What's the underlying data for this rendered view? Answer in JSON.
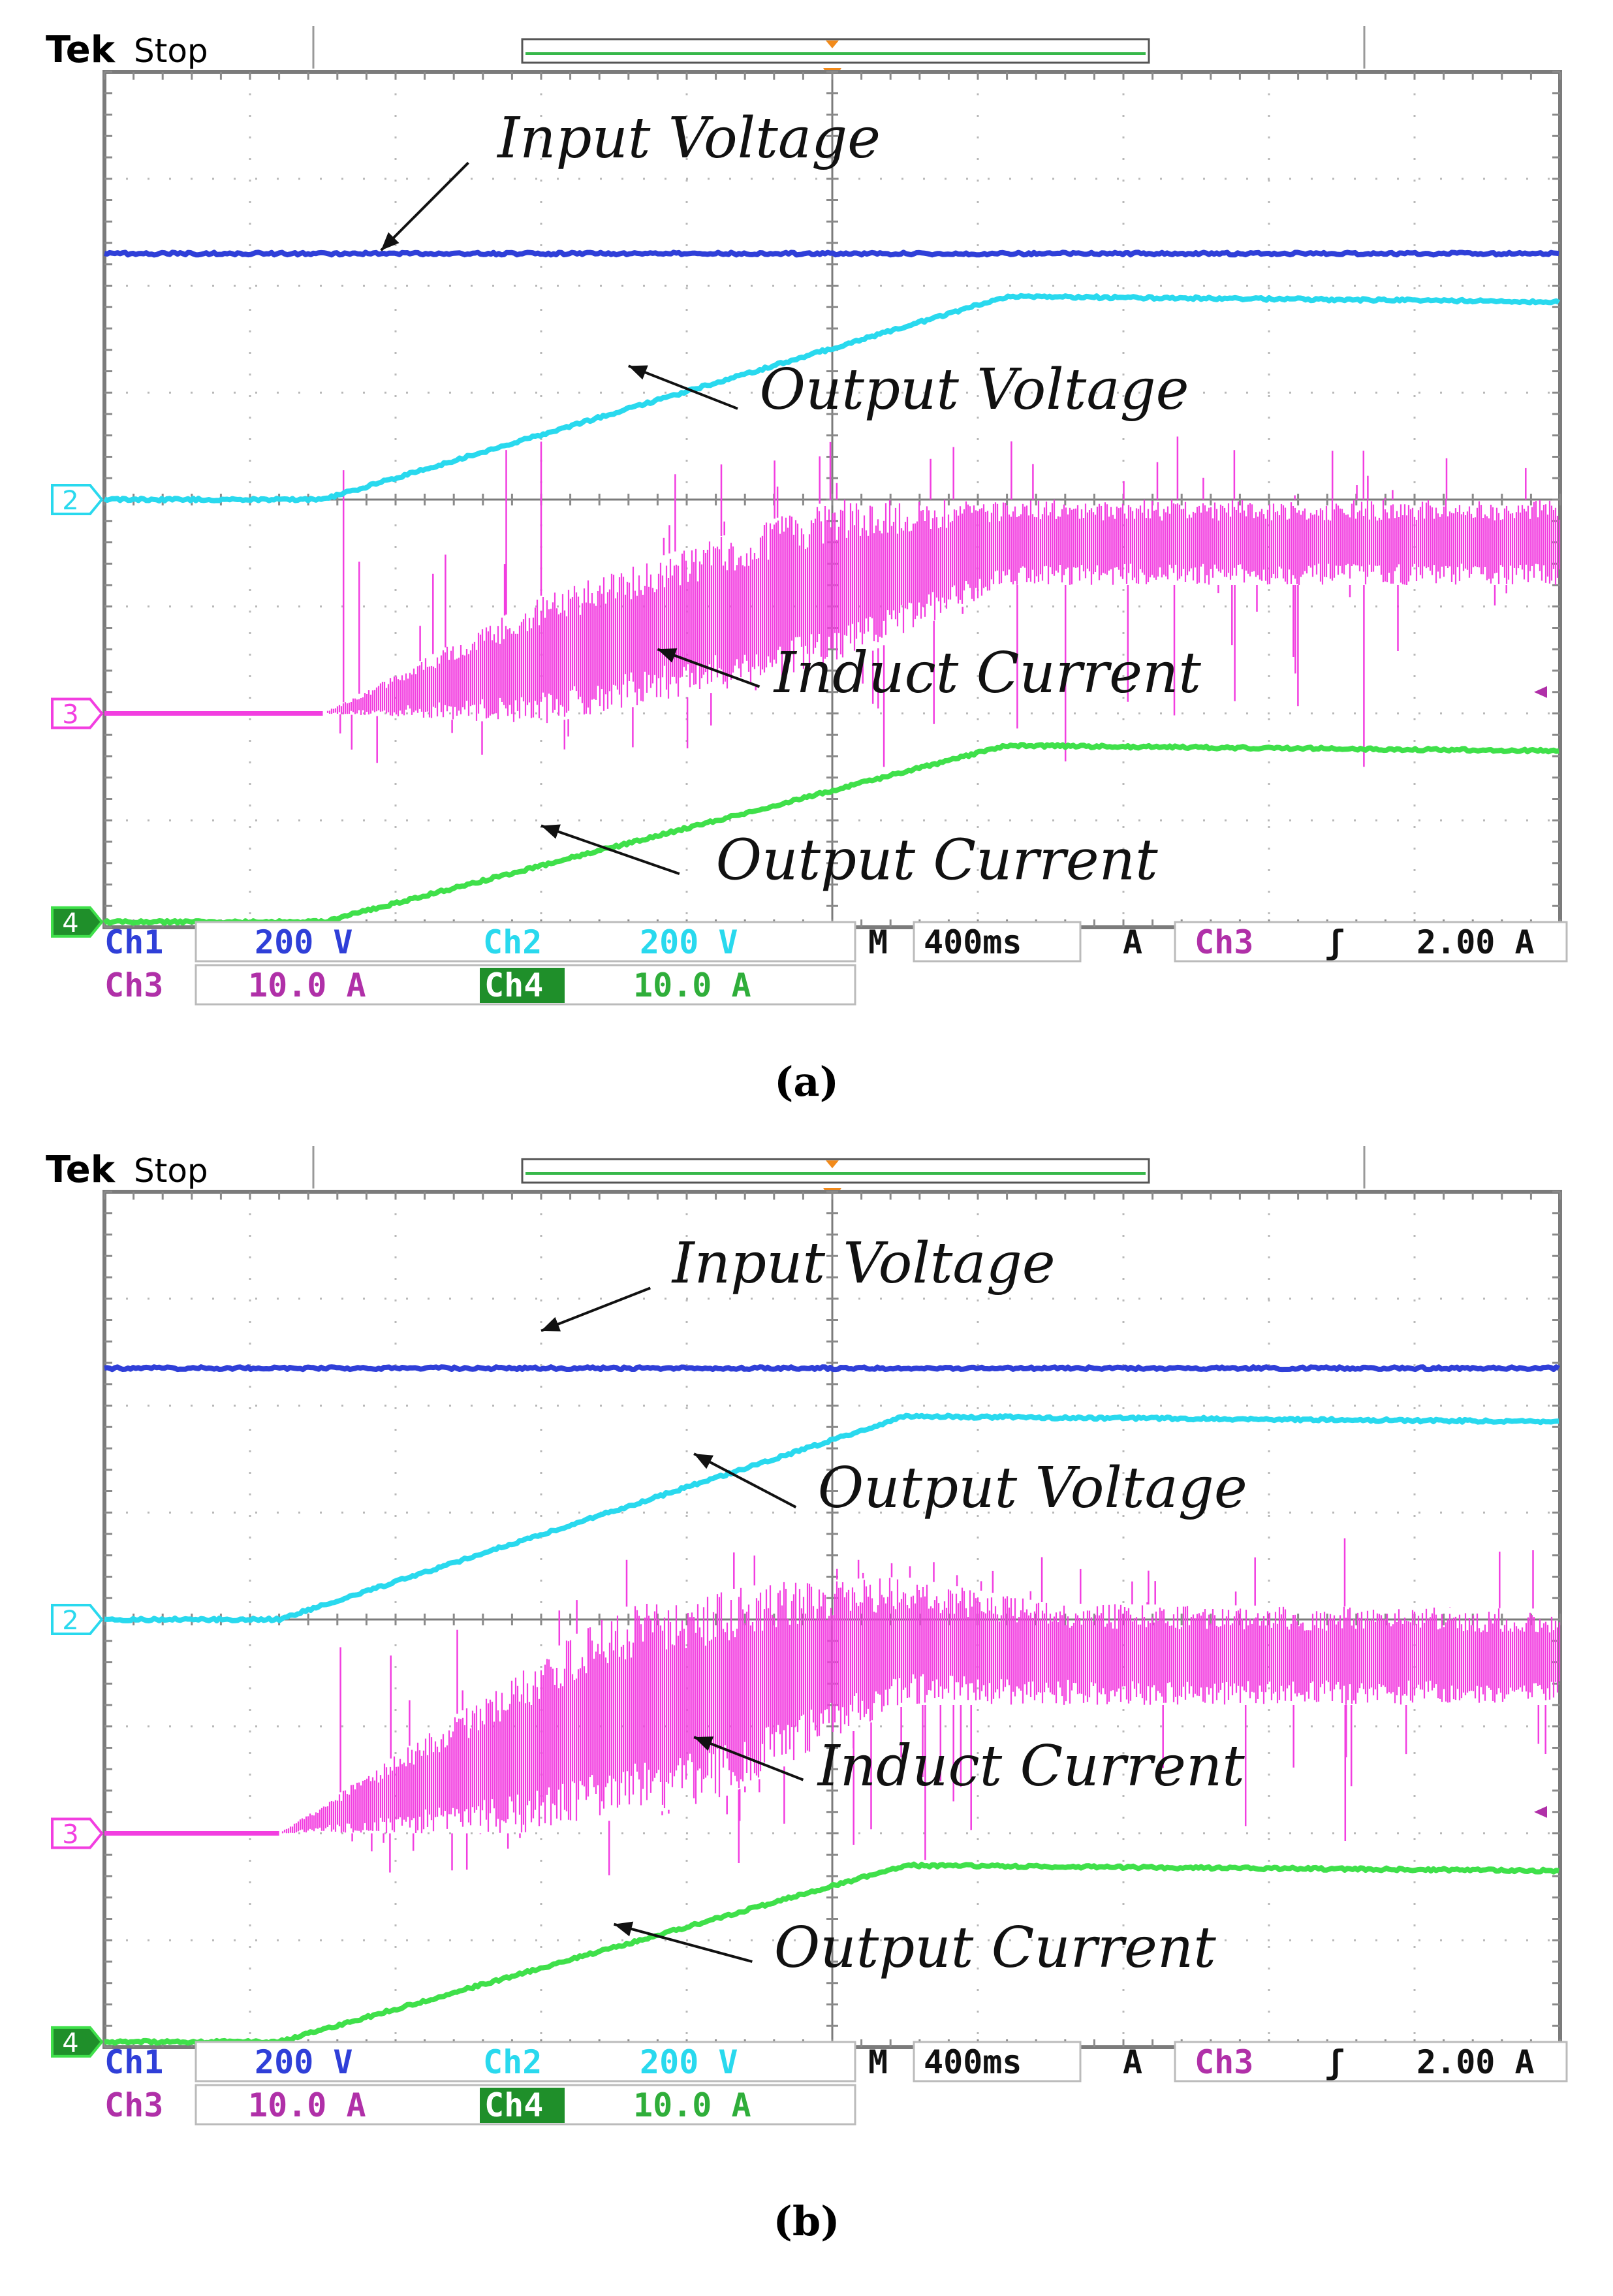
{
  "chart_data": [
    {
      "type": "line",
      "caption": "(a)",
      "header": {
        "brand": "Tek",
        "status": "Stop"
      },
      "colors": {
        "ch1": "#2f3fd8",
        "ch2": "#29d9ee",
        "ch3": "#f23ee0",
        "ch4": "#3fe04a"
      },
      "x": {
        "divisions": 10,
        "unit": "ms",
        "per_div": 400,
        "range_div": [
          0,
          10
        ]
      },
      "y": {
        "divisions": 8,
        "range_div": [
          -4,
          4
        ]
      },
      "markers": [
        {
          "id": "ch2-marker",
          "label": "2",
          "y_div": 0.0,
          "color": "#29d9ee"
        },
        {
          "id": "ch3-marker",
          "label": "3",
          "y_div": -2.0,
          "color": "#f23ee0"
        },
        {
          "id": "ch4-marker",
          "label": "4",
          "y_div": -3.95,
          "color": "#3fe04a"
        }
      ],
      "series": [
        {
          "name": "Input Voltage",
          "channel": "ch1",
          "points": [
            [
              0,
              2.3
            ],
            [
              10,
              2.3
            ]
          ]
        },
        {
          "name": "Output Voltage",
          "channel": "ch2",
          "points": [
            [
              0,
              0
            ],
            [
              1.5,
              0
            ],
            [
              6.2,
              1.9
            ],
            [
              10,
              1.85
            ]
          ]
        },
        {
          "name": "Induct Current",
          "channel": "ch3",
          "kind": "envelope",
          "upper": [
            [
              0,
              -2.0
            ],
            [
              1.5,
              -2.0
            ],
            [
              3.0,
              -0.9
            ],
            [
              5.0,
              0.0
            ],
            [
              10,
              0.0
            ]
          ],
          "lower": [
            [
              0,
              -2.0
            ],
            [
              1.5,
              -2.0
            ],
            [
              3.0,
              -2.1
            ],
            [
              5.0,
              -1.6
            ],
            [
              6.2,
              -0.8
            ],
            [
              10,
              -0.8
            ]
          ],
          "spike_top": 0.6,
          "spike_bottom": -2.5
        },
        {
          "name": "Output Current",
          "channel": "ch4",
          "points": [
            [
              0,
              -3.95
            ],
            [
              1.5,
              -3.95
            ],
            [
              6.2,
              -2.3
            ],
            [
              10,
              -2.35
            ]
          ]
        }
      ],
      "annotations": [
        {
          "text": "Input Voltage",
          "tx": 2.7,
          "ty": 3.2,
          "ax": 2.5,
          "ay": 3.15,
          "bx": 1.9,
          "by": 2.33
        },
        {
          "text": "Output Voltage",
          "tx": 4.5,
          "ty": 0.85,
          "ax": 4.35,
          "ay": 0.85,
          "bx": 3.6,
          "by": 1.25
        },
        {
          "text": "Induct Current",
          "tx": 4.6,
          "ty": -1.8,
          "ax": 4.5,
          "ay": -1.75,
          "bx": 3.8,
          "by": -1.4
        },
        {
          "text": "Output Current",
          "tx": 4.2,
          "ty": -3.55,
          "ax": 3.95,
          "ay": -3.5,
          "bx": 3.0,
          "by": -3.05
        }
      ],
      "readout": {
        "row1": [
          "Ch1",
          "200 V",
          "Ch2",
          "200 V",
          "M",
          "400ms",
          "A",
          "Ch3",
          "ʃ",
          "2.00 A"
        ],
        "row2": [
          "Ch3",
          "10.0 A",
          "Ch4",
          "10.0 A"
        ]
      }
    },
    {
      "type": "line",
      "caption": "(b)",
      "header": {
        "brand": "Tek",
        "status": "Stop"
      },
      "colors": {
        "ch1": "#2f3fd8",
        "ch2": "#29d9ee",
        "ch3": "#f23ee0",
        "ch4": "#3fe04a"
      },
      "x": {
        "divisions": 10,
        "unit": "ms",
        "per_div": 400,
        "range_div": [
          0,
          10
        ]
      },
      "y": {
        "divisions": 8,
        "range_div": [
          -4,
          4
        ]
      },
      "markers": [
        {
          "id": "ch2-marker",
          "label": "2",
          "y_div": 0.0,
          "color": "#29d9ee"
        },
        {
          "id": "ch3-marker",
          "label": "3",
          "y_div": -2.0,
          "color": "#f23ee0"
        },
        {
          "id": "ch4-marker",
          "label": "4",
          "y_div": -3.95,
          "color": "#3fe04a"
        }
      ],
      "series": [
        {
          "name": "Input Voltage",
          "channel": "ch1",
          "points": [
            [
              0,
              2.35
            ],
            [
              10,
              2.35
            ]
          ]
        },
        {
          "name": "Output Voltage",
          "channel": "ch2",
          "points": [
            [
              0,
              0
            ],
            [
              1.2,
              0
            ],
            [
              5.5,
              1.9
            ],
            [
              10,
              1.85
            ]
          ]
        },
        {
          "name": "Induct Current",
          "channel": "ch3",
          "kind": "envelope",
          "upper": [
            [
              0,
              -2.0
            ],
            [
              1.2,
              -2.0
            ],
            [
              3.5,
              0.1
            ],
            [
              4.6,
              0.35
            ],
            [
              5.5,
              0.4
            ],
            [
              6.5,
              0.15
            ],
            [
              10,
              0.1
            ]
          ],
          "lower": [
            [
              0,
              -2.0
            ],
            [
              1.2,
              -2.0
            ],
            [
              3.0,
              -2.0
            ],
            [
              4.2,
              -1.7
            ],
            [
              5.5,
              -0.8
            ],
            [
              10,
              -0.8
            ]
          ],
          "spike_top": 0.8,
          "spike_bottom": -2.4
        },
        {
          "name": "Output Current",
          "channel": "ch4",
          "points": [
            [
              0,
              -3.95
            ],
            [
              1.2,
              -3.95
            ],
            [
              5.5,
              -2.3
            ],
            [
              10,
              -2.35
            ]
          ]
        }
      ],
      "annotations": [
        {
          "text": "Input Voltage",
          "tx": 3.9,
          "ty": 3.15,
          "ax": 3.75,
          "ay": 3.1,
          "bx": 3.0,
          "by": 2.7
        },
        {
          "text": "Output Voltage",
          "tx": 4.9,
          "ty": 1.05,
          "ax": 4.75,
          "ay": 1.05,
          "bx": 4.05,
          "by": 1.55
        },
        {
          "text": "Induct Current",
          "tx": 4.9,
          "ty": -1.55,
          "ax": 4.8,
          "ay": -1.5,
          "bx": 4.05,
          "by": -1.1
        },
        {
          "text": "Output Current",
          "tx": 4.6,
          "ty": -3.25,
          "ax": 4.45,
          "ay": -3.2,
          "bx": 3.5,
          "by": -2.85
        }
      ],
      "readout": {
        "row1": [
          "Ch1",
          "200 V",
          "Ch2",
          "200 V",
          "M",
          "400ms",
          "A",
          "Ch3",
          "ʃ",
          "2.00 A"
        ],
        "row2": [
          "Ch3",
          "10.0 A",
          "Ch4",
          "10.0 A"
        ]
      }
    }
  ]
}
